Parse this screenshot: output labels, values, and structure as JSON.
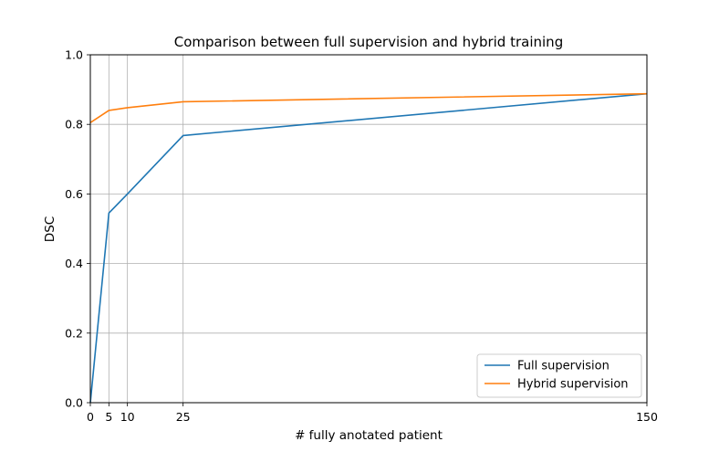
{
  "chart_data": {
    "type": "line",
    "title": "Comparison between full supervision and hybrid training",
    "xlabel": "# fully anotated patient",
    "ylabel": "DSC",
    "xlim": [
      0,
      150
    ],
    "ylim": [
      0,
      1.0
    ],
    "x_ticks": [
      0,
      5,
      10,
      25,
      150
    ],
    "x_tick_labels": [
      "0",
      "5",
      "10",
      "25",
      "150"
    ],
    "y_ticks": [
      0,
      0.2,
      0.4,
      0.6,
      0.8,
      1.0
    ],
    "y_tick_labels": [
      "0.0",
      "0.2",
      "0.4",
      "0.6",
      "0.8",
      "1.0"
    ],
    "grid": true,
    "legend_position": "lower-right",
    "series": [
      {
        "name": "Full supervision",
        "color": "#1f77b4",
        "x": [
          0,
          5,
          10,
          25,
          150
        ],
        "y": [
          0.0,
          0.545,
          0.6,
          0.768,
          0.888
        ]
      },
      {
        "name": "Hybrid supervision",
        "color": "#ff7f0e",
        "x": [
          0,
          5,
          10,
          25,
          150
        ],
        "y": [
          0.805,
          0.84,
          0.848,
          0.865,
          0.888
        ]
      }
    ]
  }
}
